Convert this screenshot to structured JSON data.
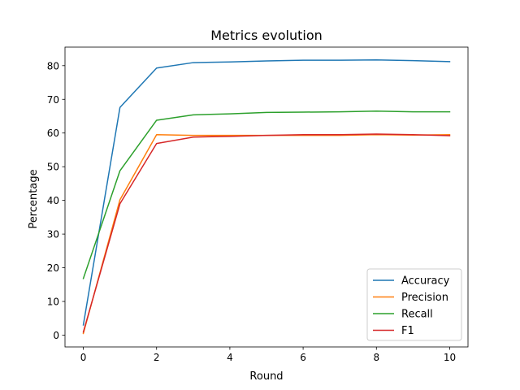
{
  "chart_data": {
    "type": "line",
    "title": "Metrics evolution",
    "xlabel": "Round",
    "ylabel": "Percentage",
    "x": [
      0,
      1,
      2,
      3,
      4,
      5,
      6,
      7,
      8,
      9,
      10
    ],
    "xlim": [
      -0.5,
      10.5
    ],
    "ylim": [
      -3.5,
      85.5
    ],
    "xticks": [
      0,
      2,
      4,
      6,
      8,
      10
    ],
    "yticks": [
      0,
      10,
      20,
      30,
      40,
      50,
      60,
      70,
      80
    ],
    "grid": false,
    "legend_position": "lower-right",
    "series": [
      {
        "name": "Accuracy",
        "color": "#1f77b4",
        "values": [
          3.0,
          67.6,
          79.3,
          80.9,
          81.1,
          81.4,
          81.6,
          81.6,
          81.7,
          81.5,
          81.2
        ]
      },
      {
        "name": "Precision",
        "color": "#ff7f0e",
        "values": [
          0.5,
          40.2,
          59.5,
          59.3,
          59.3,
          59.3,
          59.3,
          59.3,
          59.5,
          59.4,
          59.5
        ]
      },
      {
        "name": "Recall",
        "color": "#2ca02c",
        "values": [
          16.8,
          48.8,
          63.8,
          65.4,
          65.7,
          66.1,
          66.2,
          66.3,
          66.5,
          66.3,
          66.3
        ]
      },
      {
        "name": "F1",
        "color": "#d62728",
        "values": [
          0.9,
          39.0,
          56.9,
          58.8,
          59.0,
          59.3,
          59.5,
          59.5,
          59.7,
          59.5,
          59.2
        ]
      }
    ]
  }
}
